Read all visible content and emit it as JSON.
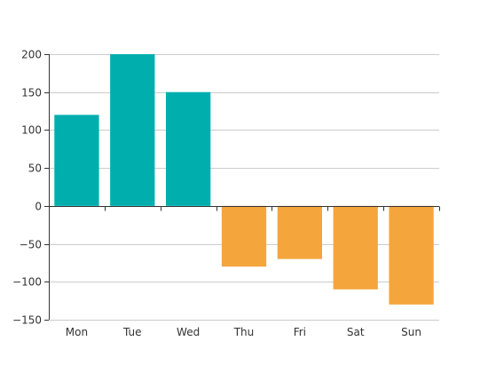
{
  "chart_data": {
    "type": "bar",
    "title": "",
    "xlabel": "",
    "ylabel": "",
    "categories": [
      "Mon",
      "Tue",
      "Wed",
      "Thu",
      "Fri",
      "Sat",
      "Sun"
    ],
    "values": [
      120,
      200,
      150,
      -80,
      -70,
      -110,
      -130
    ],
    "ylim": [
      -150,
      200
    ],
    "yticks": [
      200,
      150,
      100,
      50,
      0,
      -50,
      -100,
      -150
    ],
    "grid": true,
    "legend": "none",
    "colors": {
      "positive": "#00aeae",
      "negative": "#f4a63d",
      "grid": "#cccccc",
      "axis": "#333333",
      "text": "#333333"
    }
  }
}
